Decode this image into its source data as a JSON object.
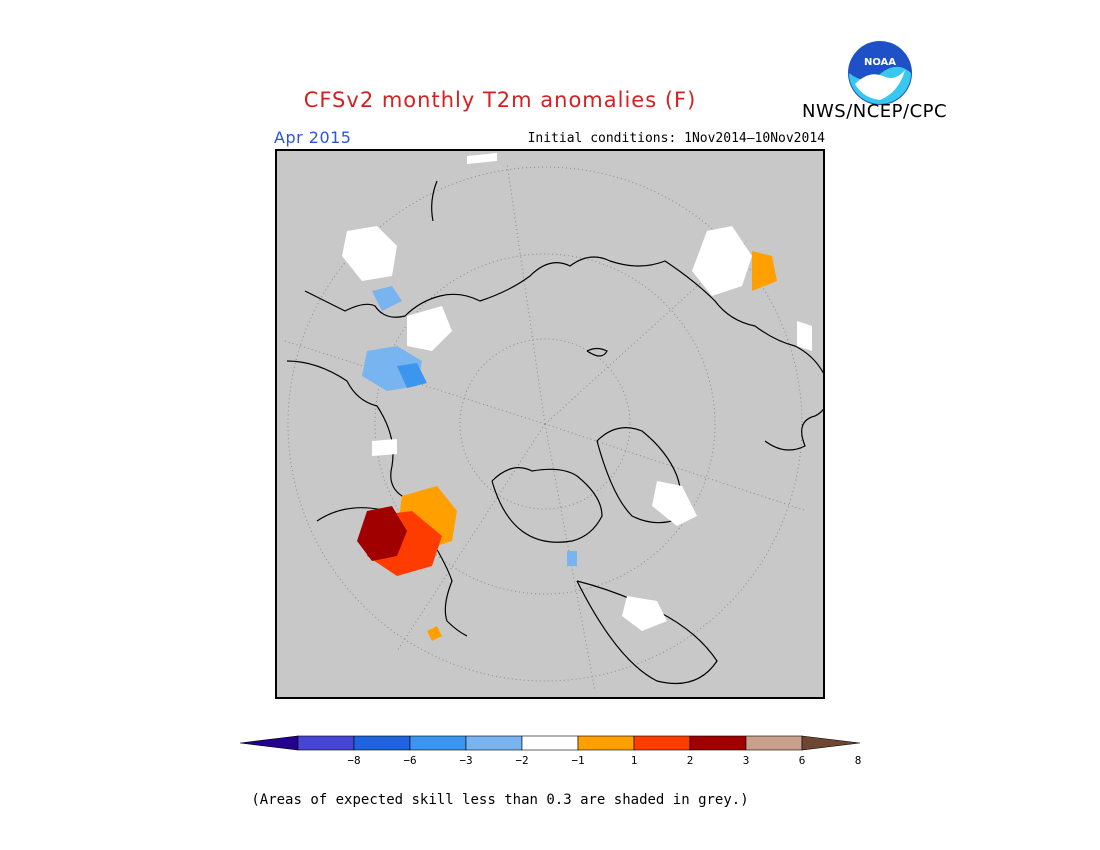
{
  "title": "CFSv2 monthly T2m anomalies (F)",
  "org": "NWS/NCEP/CPC",
  "logo_text": "NOAA",
  "month": "Apr 2015",
  "initial_conditions": "Initial conditions: 1Nov2014–10Nov2014",
  "skill_note": "(Areas of expected skill less than 0.3 are shaded in grey.)",
  "colorbar": {
    "colors": [
      "#240090",
      "#4646d2",
      "#1e64dc",
      "#3c96f0",
      "#78b4f0",
      "#ffffff",
      "#ffa000",
      "#ff3c00",
      "#a00000",
      "#c8a08c",
      "#6e4632"
    ],
    "ticks": [
      "−8",
      "−6",
      "−3",
      "−2",
      "−1",
      "1",
      "2",
      "3",
      "6",
      "8"
    ]
  },
  "map": {
    "background": "#c8c8c8",
    "projection": "north-polar-stereographic"
  }
}
